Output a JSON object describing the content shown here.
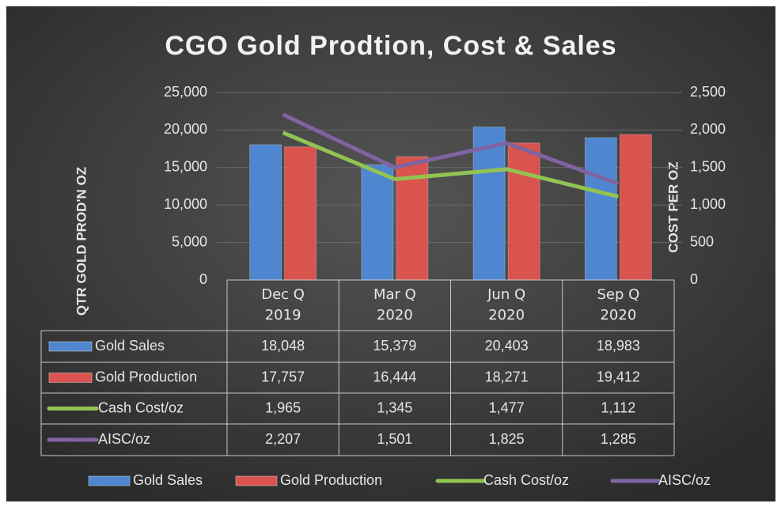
{
  "chart_data": {
    "type": "bar",
    "title": "CGO Gold Prodtion, Cost & Sales",
    "y_label": "QTR GOLD PROD'N OZ",
    "y2_label": "COST PER OZ",
    "categories": [
      "Dec Q 2019",
      "Mar Q 2020",
      "Jun Q 2020",
      "Sep Q 2020"
    ],
    "series": [
      {
        "name": "Gold Sales",
        "type": "bar",
        "color": "#4f86d0",
        "values": [
          18048,
          15379,
          20403,
          18983
        ],
        "value_labels": [
          "18,048",
          "15,379",
          "20,403",
          "18,983"
        ]
      },
      {
        "name": "Gold Production",
        "type": "bar",
        "color": "#d9534f",
        "values": [
          17757,
          16444,
          18271,
          19412
        ],
        "value_labels": [
          "17,757",
          "16,444",
          "18,271",
          "19,412"
        ]
      },
      {
        "name": "Cash Cost/oz",
        "type": "line",
        "axis": "y2",
        "color": "#92c353",
        "values": [
          1965,
          1345,
          1477,
          1112
        ],
        "value_labels": [
          "1,965",
          "1,345",
          "1,477",
          "1,112"
        ]
      },
      {
        "name": "AISC/oz",
        "type": "line",
        "axis": "y2",
        "color": "#8064a2",
        "values": [
          2207,
          1501,
          1825,
          1285
        ],
        "value_labels": [
          "2,207",
          "1,501",
          "1,825",
          "1,285"
        ]
      }
    ],
    "ylim": [
      0,
      25000
    ],
    "yticks": [
      0,
      {
        "value": 5000,
        "label": "5,000"
      },
      {
        "value": 10000,
        "label": "10,000"
      },
      {
        "value": 15000,
        "label": "15,000"
      },
      {
        "value": 20000,
        "label": "20,000"
      },
      {
        "value": 25000,
        "label": "25,000"
      }
    ],
    "y2lim": [
      0,
      2500
    ],
    "y2ticks": [
      0,
      500,
      {
        "value": 1000,
        "label": "1,000"
      },
      {
        "value": 1500,
        "label": "1,500"
      },
      {
        "value": 2000,
        "label": "2,000"
      },
      {
        "value": 2500,
        "label": "2,500"
      }
    ],
    "grid": true,
    "legend": "bottom"
  }
}
